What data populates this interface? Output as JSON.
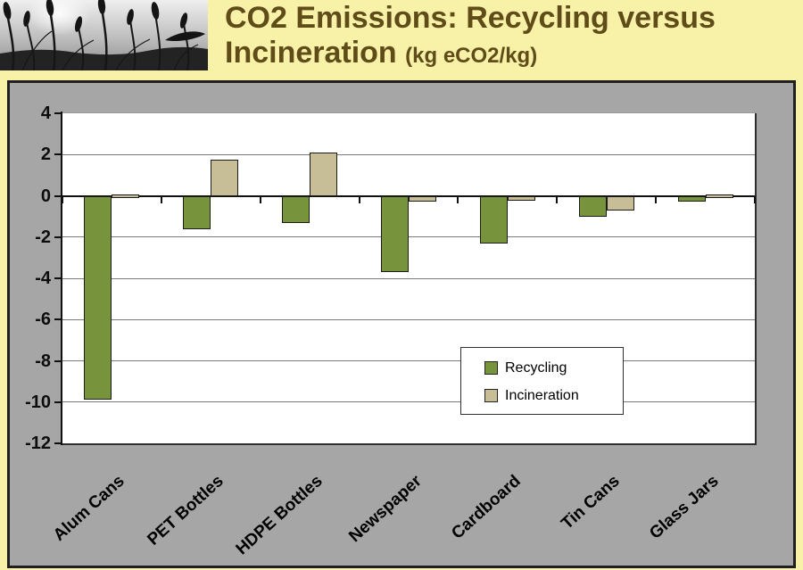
{
  "header": {
    "title_line1": "CO2 Emissions: Recycling versus",
    "title_line2": "Incineration",
    "title_unit": "(kg eCO2/kg)"
  },
  "colors": {
    "page_bg": "#F8F2A8",
    "board_bg": "#A6A6A6",
    "board_border": "#1F1F1F",
    "title_text": "#5F4C18",
    "plot_bg": "#FFFFFF",
    "gridline": "#7B7B7B",
    "axis": "#111111",
    "recycling_green": "#77943D",
    "incineration_tan": "#C7BE98"
  },
  "chart_data": {
    "type": "bar",
    "title": "CO2 Emissions: Recycling versus Incineration (kg eCO2/kg)",
    "categories": [
      "Alum Cans",
      "PET Bottles",
      "HDPE Bottles",
      "Newspaper",
      "Cardboard",
      "Tin Cans",
      "Glass Jars"
    ],
    "series": [
      {
        "name": "Recycling",
        "color": "#77943D",
        "values": [
          -9.9,
          -1.6,
          -1.3,
          -3.7,
          -2.3,
          -1.0,
          -0.3
        ]
      },
      {
        "name": "Incineration",
        "color": "#C7BE98",
        "values": [
          0.05,
          1.75,
          2.1,
          -0.3,
          -0.25,
          -0.7,
          0.05
        ]
      }
    ],
    "xlabel": "",
    "ylabel": "",
    "ylim": [
      -12,
      4
    ],
    "yticks": [
      4,
      2,
      0,
      -2,
      -4,
      -6,
      -8,
      -10,
      -12
    ],
    "grid": true,
    "legend_position": "inside-right",
    "x_label_rotation_deg": -42
  }
}
